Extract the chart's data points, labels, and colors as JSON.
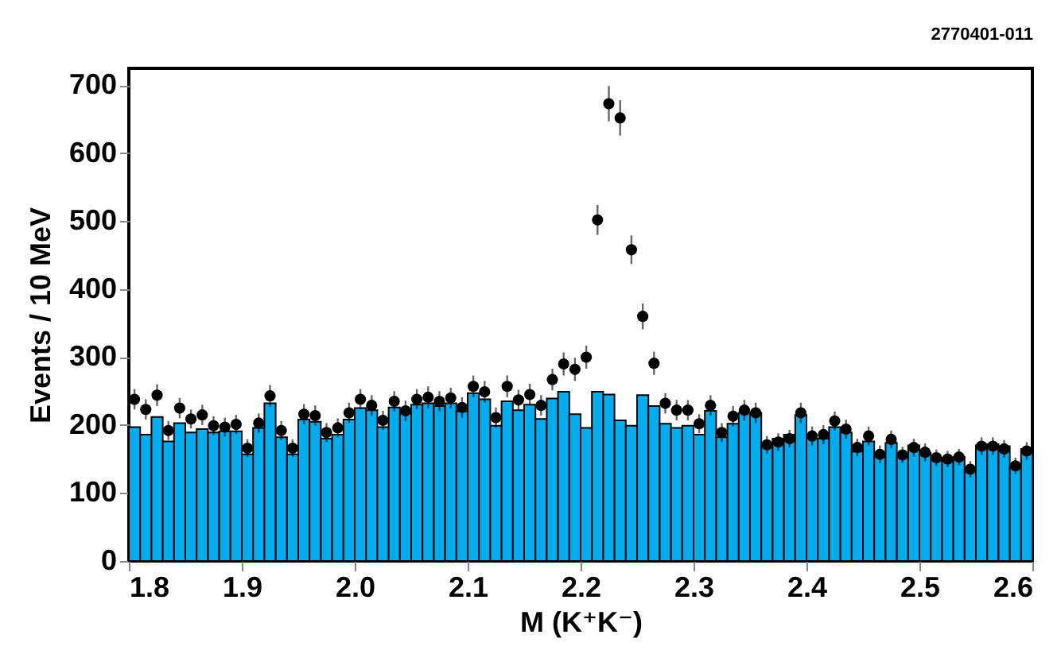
{
  "chart_data": {
    "type": "histogram",
    "xlabel": "M (K⁺K⁻)",
    "ylabel": "Events / 10 MeV",
    "annotations": [
      "2770401-011"
    ],
    "bins": [
      1.8,
      1.81,
      1.82,
      1.83,
      1.84,
      1.85,
      1.86,
      1.87,
      1.88,
      1.89,
      1.9,
      1.91,
      1.92,
      1.93,
      1.94,
      1.95,
      1.96,
      1.97,
      1.98,
      1.99,
      2.0,
      2.01,
      2.02,
      2.03,
      2.04,
      2.05,
      2.06,
      2.07,
      2.08,
      2.09,
      2.1,
      2.11,
      2.12,
      2.13,
      2.14,
      2.15,
      2.16,
      2.17,
      2.18,
      2.19,
      2.2,
      2.21,
      2.22,
      2.23,
      2.24,
      2.25,
      2.26,
      2.27,
      2.28,
      2.29,
      2.3,
      2.31,
      2.32,
      2.33,
      2.34,
      2.35,
      2.36,
      2.37,
      2.38,
      2.39,
      2.4,
      2.41,
      2.42,
      2.43,
      2.44,
      2.45,
      2.46,
      2.47,
      2.48,
      2.49,
      2.5,
      2.51,
      2.52,
      2.53,
      2.54,
      2.55,
      2.56,
      2.57,
      2.58,
      2.59,
      2.6
    ],
    "series": [
      {
        "type": "histogram",
        "color": "#00aeef",
        "values": [
          197,
          186,
          212,
          176,
          203,
          189,
          194,
          189,
          191,
          191,
          157,
          196,
          232,
          182,
          157,
          208,
          205,
          180,
          186,
          208,
          225,
          222,
          197,
          226,
          218,
          230,
          232,
          228,
          232,
          220,
          247,
          238,
          199,
          235,
          222,
          230,
          209,
          239,
          249,
          216,
          196,
          249,
          245,
          207,
          199,
          244,
          228,
          202,
          196,
          199,
          186,
          221,
          182,
          202,
          218,
          218,
          174,
          180,
          186,
          215,
          180,
          180,
          197,
          189,
          161,
          176,
          156,
          174,
          153,
          170,
          159,
          152,
          150,
          153,
          134,
          170,
          172,
          169,
          138,
          165
        ]
      },
      {
        "type": "scatter",
        "color": "#000000",
        "x": [
          1.805,
          1.815,
          1.825,
          1.835,
          1.845,
          1.855,
          1.865,
          1.875,
          1.885,
          1.895,
          1.905,
          1.915,
          1.925,
          1.935,
          1.945,
          1.955,
          1.965,
          1.975,
          1.985,
          1.995,
          2.005,
          2.015,
          2.025,
          2.035,
          2.045,
          2.055,
          2.065,
          2.075,
          2.085,
          2.095,
          2.105,
          2.115,
          2.125,
          2.135,
          2.145,
          2.155,
          2.165,
          2.175,
          2.185,
          2.195,
          2.205,
          2.215,
          2.225,
          2.235,
          2.245,
          2.255,
          2.265,
          2.275,
          2.285,
          2.295,
          2.305,
          2.315,
          2.325,
          2.335,
          2.345,
          2.355,
          2.365,
          2.375,
          2.385,
          2.395,
          2.405,
          2.415,
          2.425,
          2.435,
          2.445,
          2.455,
          2.465,
          2.475,
          2.485,
          2.495,
          2.505,
          2.515,
          2.525,
          2.535,
          2.545,
          2.555,
          2.565,
          2.575,
          2.585,
          2.595
        ],
        "values": [
          238,
          223,
          244,
          192,
          225,
          209,
          215,
          199,
          197,
          201,
          166,
          203,
          243,
          192,
          166,
          216,
          214,
          189,
          196,
          218,
          238,
          229,
          207,
          235,
          221,
          238,
          241,
          235,
          240,
          226,
          257,
          249,
          211,
          257,
          237,
          245,
          229,
          267,
          290,
          282,
          300,
          502,
          673,
          652,
          458,
          360,
          291,
          232,
          222,
          222,
          202,
          229,
          189,
          213,
          222,
          218,
          171,
          175,
          180,
          218,
          184,
          186,
          206,
          194,
          167,
          184,
          157,
          179,
          156,
          167,
          160,
          152,
          150,
          153,
          135,
          169,
          169,
          165,
          140,
          162
        ],
        "errors": [
          15,
          15,
          16,
          14,
          15,
          14,
          15,
          14,
          14,
          14,
          13,
          14,
          16,
          14,
          13,
          15,
          15,
          14,
          14,
          15,
          15,
          15,
          14,
          15,
          15,
          15,
          16,
          15,
          15,
          15,
          16,
          16,
          15,
          16,
          15,
          16,
          15,
          16,
          17,
          17,
          17,
          22,
          26,
          26,
          21,
          19,
          17,
          15,
          15,
          15,
          14,
          15,
          14,
          15,
          15,
          15,
          13,
          13,
          13,
          15,
          14,
          14,
          14,
          14,
          13,
          14,
          13,
          13,
          12,
          13,
          13,
          12,
          12,
          12,
          12,
          13,
          13,
          13,
          12,
          13
        ]
      }
    ],
    "xlim": [
      1.8,
      2.6
    ],
    "xticks": [
      1.8,
      1.9,
      {
        "value": 2,
        "label": "2.0"
      },
      2.1,
      2.2,
      2.3,
      2.4,
      2.5,
      2.6
    ],
    "ylim": [
      0,
      725
    ],
    "yticks": [
      0,
      100,
      200,
      300,
      400,
      500,
      600,
      700
    ],
    "marker": "circle",
    "grid": false
  }
}
